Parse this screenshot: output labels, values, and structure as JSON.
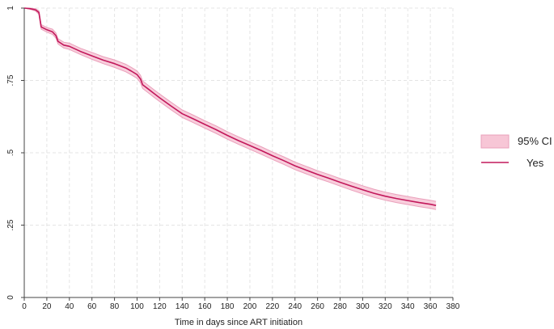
{
  "chart_data": {
    "type": "line",
    "title": "",
    "xlabel": "Time in days since ART initiation",
    "ylabel": "",
    "xlim": [
      0,
      380
    ],
    "ylim": [
      0,
      1
    ],
    "x_ticks": [
      0,
      20,
      40,
      60,
      80,
      100,
      120,
      140,
      160,
      180,
      200,
      220,
      240,
      260,
      280,
      300,
      320,
      340,
      360,
      380
    ],
    "y_ticks": [
      {
        "value": 0,
        "label": "0"
      },
      {
        "value": 0.25,
        "label": ".25"
      },
      {
        "value": 0.5,
        "label": ".5"
      },
      {
        "value": 0.75,
        "label": ".75"
      },
      {
        "value": 1,
        "label": "1"
      }
    ],
    "grid": true,
    "legend_position": "right",
    "colors": {
      "line": "#c2185b",
      "band": "#f7c6d6",
      "grid": "#e4e4e4",
      "axis": "#444444"
    },
    "series": [
      {
        "name": "Yes",
        "x": [
          0,
          5,
          10,
          13,
          15,
          20,
          25,
          28,
          30,
          35,
          40,
          50,
          60,
          70,
          80,
          90,
          95,
          100,
          103,
          105,
          110,
          115,
          120,
          130,
          140,
          150,
          160,
          170,
          180,
          190,
          200,
          210,
          220,
          230,
          240,
          250,
          260,
          270,
          280,
          290,
          300,
          310,
          320,
          330,
          340,
          350,
          360,
          365
        ],
        "values": [
          1.0,
          0.998,
          0.994,
          0.985,
          0.935,
          0.925,
          0.918,
          0.905,
          0.885,
          0.872,
          0.868,
          0.85,
          0.835,
          0.82,
          0.808,
          0.793,
          0.782,
          0.77,
          0.755,
          0.735,
          0.72,
          0.705,
          0.69,
          0.662,
          0.635,
          0.617,
          0.598,
          0.58,
          0.56,
          0.542,
          0.525,
          0.508,
          0.49,
          0.473,
          0.455,
          0.44,
          0.425,
          0.412,
          0.398,
          0.385,
          0.372,
          0.36,
          0.35,
          0.342,
          0.335,
          0.328,
          0.322,
          0.318
        ],
        "ci_lower": [
          1.0,
          0.996,
          0.99,
          0.979,
          0.927,
          0.917,
          0.909,
          0.896,
          0.876,
          0.862,
          0.857,
          0.839,
          0.823,
          0.808,
          0.795,
          0.78,
          0.769,
          0.757,
          0.742,
          0.722,
          0.707,
          0.692,
          0.677,
          0.649,
          0.622,
          0.604,
          0.585,
          0.567,
          0.547,
          0.529,
          0.512,
          0.495,
          0.477,
          0.46,
          0.442,
          0.427,
          0.412,
          0.399,
          0.385,
          0.371,
          0.358,
          0.346,
          0.336,
          0.328,
          0.321,
          0.314,
          0.308,
          0.304
        ],
        "ci_upper": [
          1.0,
          1.0,
          0.998,
          0.991,
          0.943,
          0.933,
          0.927,
          0.914,
          0.894,
          0.882,
          0.879,
          0.861,
          0.847,
          0.832,
          0.821,
          0.806,
          0.795,
          0.783,
          0.768,
          0.748,
          0.733,
          0.718,
          0.703,
          0.675,
          0.648,
          0.63,
          0.611,
          0.593,
          0.573,
          0.555,
          0.538,
          0.521,
          0.503,
          0.486,
          0.468,
          0.453,
          0.438,
          0.425,
          0.411,
          0.399,
          0.386,
          0.374,
          0.364,
          0.356,
          0.349,
          0.342,
          0.336,
          0.332
        ]
      }
    ],
    "legend": [
      {
        "label": "95% CI",
        "kind": "band"
      },
      {
        "label": "Yes",
        "kind": "line"
      }
    ]
  }
}
